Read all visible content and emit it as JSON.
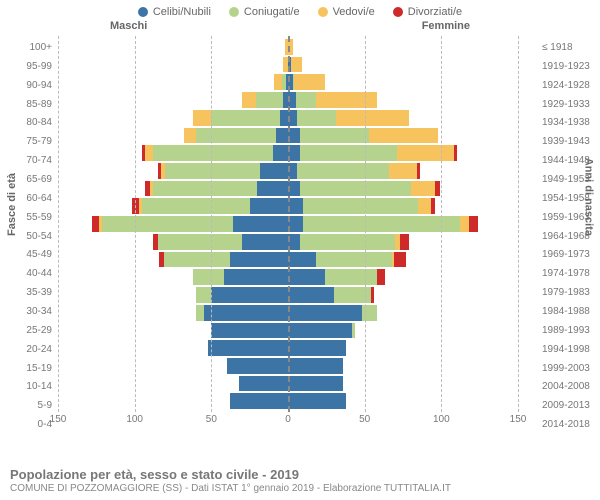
{
  "legend": [
    {
      "label": "Celibi/Nubili",
      "color": "#3C74A6"
    },
    {
      "label": "Coniugati/e",
      "color": "#B5D38C"
    },
    {
      "label": "Vedovi/e",
      "color": "#F7C35E"
    },
    {
      "label": "Divorziati/e",
      "color": "#CE2A2A"
    }
  ],
  "gender": {
    "male": "Maschi",
    "female": "Femmine"
  },
  "axis": {
    "left_title": "Fasce di età",
    "right_title": "Anni di nascita",
    "x_max": 150,
    "x_ticks": [
      150,
      100,
      50,
      0,
      50,
      100,
      150
    ]
  },
  "caption": {
    "title": "Popolazione per età, sesso e stato civile - 2019",
    "sub": "COMUNE DI POZZOMAGGIORE (SS) - Dati ISTAT 1° gennaio 2019 - Elaborazione TUTTITALIA.IT"
  },
  "rows": [
    {
      "age": "100+",
      "birth": "≤ 1918",
      "m": {
        "cel": 0,
        "con": 0,
        "ved": 2,
        "div": 0
      },
      "f": {
        "cel": 0,
        "con": 0,
        "ved": 3,
        "div": 0
      }
    },
    {
      "age": "95-99",
      "birth": "1919-1923",
      "m": {
        "cel": 0,
        "con": 0,
        "ved": 3,
        "div": 0
      },
      "f": {
        "cel": 2,
        "con": 0,
        "ved": 7,
        "div": 0
      }
    },
    {
      "age": "90-94",
      "birth": "1924-1928",
      "m": {
        "cel": 1,
        "con": 3,
        "ved": 5,
        "div": 0
      },
      "f": {
        "cel": 3,
        "con": 1,
        "ved": 20,
        "div": 0
      }
    },
    {
      "age": "85-89",
      "birth": "1929-1933",
      "m": {
        "cel": 3,
        "con": 18,
        "ved": 9,
        "div": 0
      },
      "f": {
        "cel": 5,
        "con": 13,
        "ved": 40,
        "div": 0
      }
    },
    {
      "age": "80-84",
      "birth": "1934-1938",
      "m": {
        "cel": 5,
        "con": 45,
        "ved": 12,
        "div": 0
      },
      "f": {
        "cel": 6,
        "con": 25,
        "ved": 48,
        "div": 0
      }
    },
    {
      "age": "75-79",
      "birth": "1939-1943",
      "m": {
        "cel": 8,
        "con": 52,
        "ved": 8,
        "div": 0
      },
      "f": {
        "cel": 8,
        "con": 45,
        "ved": 45,
        "div": 0
      }
    },
    {
      "age": "70-74",
      "birth": "1944-1948",
      "m": {
        "cel": 10,
        "con": 78,
        "ved": 5,
        "div": 2
      },
      "f": {
        "cel": 8,
        "con": 63,
        "ved": 37,
        "div": 2
      }
    },
    {
      "age": "65-69",
      "birth": "1949-1953",
      "m": {
        "cel": 18,
        "con": 62,
        "ved": 3,
        "div": 2
      },
      "f": {
        "cel": 6,
        "con": 60,
        "ved": 18,
        "div": 2
      }
    },
    {
      "age": "60-64",
      "birth": "1954-1958",
      "m": {
        "cel": 20,
        "con": 68,
        "ved": 2,
        "div": 3
      },
      "f": {
        "cel": 8,
        "con": 72,
        "ved": 16,
        "div": 3
      }
    },
    {
      "age": "55-59",
      "birth": "1959-1963",
      "m": {
        "cel": 25,
        "con": 70,
        "ved": 2,
        "div": 5
      },
      "f": {
        "cel": 10,
        "con": 75,
        "ved": 8,
        "div": 3
      }
    },
    {
      "age": "50-54",
      "birth": "1964-1968",
      "m": {
        "cel": 36,
        "con": 85,
        "ved": 2,
        "div": 5
      },
      "f": {
        "cel": 10,
        "con": 102,
        "ved": 6,
        "div": 6
      }
    },
    {
      "age": "45-49",
      "birth": "1969-1973",
      "m": {
        "cel": 30,
        "con": 55,
        "ved": 0,
        "div": 3
      },
      "f": {
        "cel": 8,
        "con": 62,
        "ved": 3,
        "div": 6
      }
    },
    {
      "age": "40-44",
      "birth": "1974-1978",
      "m": {
        "cel": 38,
        "con": 43,
        "ved": 0,
        "div": 3
      },
      "f": {
        "cel": 18,
        "con": 50,
        "ved": 1,
        "div": 8
      }
    },
    {
      "age": "35-39",
      "birth": "1979-1983",
      "m": {
        "cel": 42,
        "con": 20,
        "ved": 0,
        "div": 0
      },
      "f": {
        "cel": 24,
        "con": 34,
        "ved": 0,
        "div": 5
      }
    },
    {
      "age": "30-34",
      "birth": "1984-1988",
      "m": {
        "cel": 50,
        "con": 10,
        "ved": 0,
        "div": 0
      },
      "f": {
        "cel": 30,
        "con": 24,
        "ved": 0,
        "div": 2
      }
    },
    {
      "age": "25-29",
      "birth": "1989-1993",
      "m": {
        "cel": 55,
        "con": 5,
        "ved": 0,
        "div": 0
      },
      "f": {
        "cel": 48,
        "con": 10,
        "ved": 0,
        "div": 0
      }
    },
    {
      "age": "20-24",
      "birth": "1994-1998",
      "m": {
        "cel": 50,
        "con": 0,
        "ved": 0,
        "div": 0
      },
      "f": {
        "cel": 42,
        "con": 2,
        "ved": 0,
        "div": 0
      }
    },
    {
      "age": "15-19",
      "birth": "1999-2003",
      "m": {
        "cel": 52,
        "con": 0,
        "ved": 0,
        "div": 0
      },
      "f": {
        "cel": 38,
        "con": 0,
        "ved": 0,
        "div": 0
      }
    },
    {
      "age": "10-14",
      "birth": "2004-2008",
      "m": {
        "cel": 40,
        "con": 0,
        "ved": 0,
        "div": 0
      },
      "f": {
        "cel": 36,
        "con": 0,
        "ved": 0,
        "div": 0
      }
    },
    {
      "age": "5-9",
      "birth": "2009-2013",
      "m": {
        "cel": 32,
        "con": 0,
        "ved": 0,
        "div": 0
      },
      "f": {
        "cel": 36,
        "con": 0,
        "ved": 0,
        "div": 0
      }
    },
    {
      "age": "0-4",
      "birth": "2014-2018",
      "m": {
        "cel": 38,
        "con": 0,
        "ved": 0,
        "div": 0
      },
      "f": {
        "cel": 38,
        "con": 0,
        "ved": 0,
        "div": 0
      }
    }
  ],
  "colors": {
    "cel": "#3C74A6",
    "con": "#B5D38C",
    "ved": "#F7C35E",
    "div": "#CE2A2A"
  }
}
